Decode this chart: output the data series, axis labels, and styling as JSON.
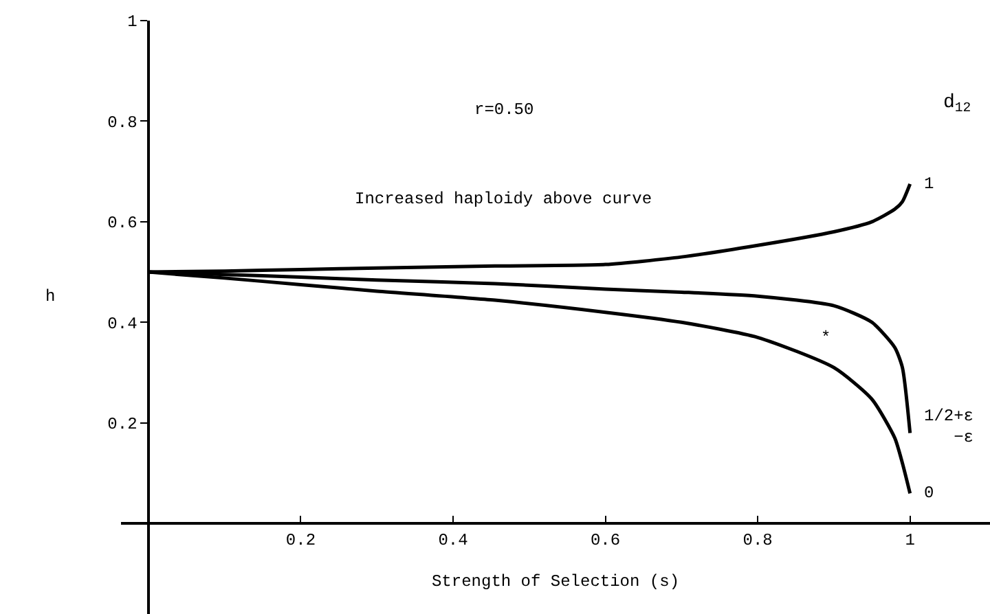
{
  "chart_data": {
    "type": "line",
    "xlabel": "Strength of Selection (s)",
    "ylabel": "h",
    "legend_title": "d$_{12}$",
    "x": [
      0,
      0.1,
      0.2,
      0.3,
      0.455,
      0.6,
      0.7,
      0.8,
      0.9,
      0.95,
      0.98,
      0.99,
      1.0
    ],
    "series": [
      {
        "name": "1",
        "color": "#000000",
        "values": [
          0.5,
          0.502,
          0.505,
          0.508,
          0.512,
          0.515,
          0.53,
          0.553,
          0.58,
          0.6,
          0.625,
          0.64,
          0.675
        ]
      },
      {
        "name": "1/2+ε\n−ε",
        "color": "#000000",
        "values": [
          0.5,
          0.495,
          0.49,
          0.484,
          0.477,
          0.466,
          0.46,
          0.452,
          0.433,
          0.4,
          0.35,
          0.31,
          0.18
        ]
      },
      {
        "name": "0",
        "color": "#000000",
        "values": [
          0.5,
          0.488,
          0.475,
          0.462,
          0.444,
          0.42,
          0.4,
          0.37,
          0.31,
          0.247,
          0.17,
          0.12,
          0.06
        ]
      }
    ],
    "annotations": [
      "r=0.50",
      "Increased haploidy above curve",
      "*"
    ],
    "xlim": [
      -0.036,
      1.105
    ],
    "ylim": [
      -0.18,
      1
    ],
    "xticks": [
      0.2,
      0.4,
      0.6,
      0.8,
      1
    ],
    "yticks": [
      0.2,
      0.4,
      0.6,
      0.8,
      1
    ],
    "grid": false,
    "legend": false,
    "marker": "none",
    "line_style": "solid"
  }
}
